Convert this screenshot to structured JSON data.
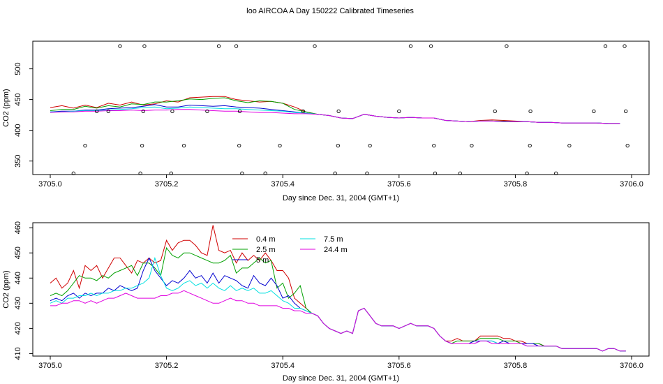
{
  "title": "loo AIRCOA A  Day 150222  Calibrated Timeseries",
  "chart_data": [
    {
      "type": "line",
      "title": "",
      "xlabel": "Day since Dec. 31, 2004 (GMT+1)",
      "ylabel": "CO2 (ppm)",
      "xlim": [
        3704.97,
        3706.03
      ],
      "ylim": [
        328,
        545
      ],
      "xticks": [
        "3705.0",
        "3705.2",
        "3705.4",
        "3705.6",
        "3705.8",
        "3706.0"
      ],
      "yticks": [
        "350",
        "400",
        "450",
        "500"
      ],
      "colors": [
        "#d00000",
        "#00a000",
        "#0000d0",
        "#00e0e0",
        "#e000e0"
      ],
      "x": [
        3705.0,
        3705.02,
        3705.04,
        3705.06,
        3705.08,
        3705.1,
        3705.12,
        3705.14,
        3705.16,
        3705.18,
        3705.2,
        3705.22,
        3705.24,
        3705.26,
        3705.28,
        3705.3,
        3705.32,
        3705.34,
        3705.36,
        3705.38,
        3705.4,
        3705.42,
        3705.44,
        3705.46,
        3705.48,
        3705.5,
        3705.52,
        3705.54,
        3705.56,
        3705.58,
        3705.6,
        3705.62,
        3705.64,
        3705.66,
        3705.68,
        3705.7,
        3705.72,
        3705.74,
        3705.76,
        3705.78,
        3705.8,
        3705.82,
        3705.84,
        3705.86,
        3705.88,
        3705.9,
        3705.92,
        3705.94,
        3705.96,
        3705.98
      ],
      "series": [
        {
          "values": [
            437,
            440,
            436,
            441,
            437,
            444,
            441,
            446,
            441,
            443,
            448,
            446,
            453,
            454,
            455,
            455,
            450,
            448,
            446,
            447,
            444,
            438,
            430,
            426,
            424,
            420,
            419,
            426,
            423,
            421,
            420,
            421,
            420,
            420,
            416,
            415,
            414,
            416,
            417,
            416,
            415,
            414,
            413,
            413,
            412,
            412,
            412,
            412,
            411,
            411
          ]
        },
        {
          "values": [
            432,
            434,
            434,
            439,
            436,
            440,
            438,
            443,
            442,
            446,
            446,
            448,
            451,
            450,
            452,
            453,
            448,
            445,
            448,
            447,
            444,
            434,
            430,
            426,
            424,
            420,
            419,
            426,
            423,
            421,
            420,
            421,
            420,
            420,
            416,
            415,
            414,
            415,
            415,
            415,
            414,
            414,
            413,
            413,
            412,
            412,
            412,
            412,
            411,
            411
          ]
        },
        {
          "values": [
            430,
            431,
            431,
            433,
            433,
            435,
            436,
            437,
            439,
            442,
            438,
            438,
            441,
            440,
            439,
            440,
            438,
            437,
            436,
            434,
            432,
            430,
            428,
            426,
            424,
            420,
            419,
            426,
            423,
            421,
            420,
            421,
            420,
            420,
            416,
            415,
            414,
            415,
            415,
            414,
            414,
            414,
            413,
            413,
            412,
            412,
            412,
            412,
            411,
            411
          ]
        },
        {
          "values": [
            430,
            430,
            431,
            432,
            432,
            433,
            434,
            435,
            437,
            438,
            435,
            436,
            438,
            437,
            436,
            435,
            435,
            434,
            433,
            432,
            431,
            429,
            428,
            426,
            424,
            420,
            419,
            426,
            423,
            421,
            420,
            421,
            420,
            420,
            416,
            415,
            414,
            415,
            415,
            414,
            414,
            414,
            413,
            413,
            412,
            412,
            412,
            412,
            411,
            411
          ]
        },
        {
          "values": [
            429,
            430,
            430,
            431,
            431,
            432,
            432,
            433,
            432,
            433,
            433,
            434,
            434,
            433,
            432,
            431,
            431,
            430,
            429,
            429,
            428,
            427,
            427,
            426,
            424,
            420,
            419,
            426,
            423,
            421,
            420,
            421,
            420,
            420,
            416,
            415,
            414,
            415,
            415,
            414,
            414,
            414,
            413,
            413,
            412,
            412,
            412,
            412,
            411,
            411
          ]
        }
      ],
      "calibration_x": [
        3705.04,
        3705.06,
        3705.08,
        3705.1,
        3705.12,
        3705.155,
        3705.158,
        3705.16,
        3705.162,
        3705.208,
        3705.21,
        3705.23,
        3705.27,
        3705.29,
        3705.32,
        3705.325,
        3705.326,
        3705.33,
        3705.37,
        3705.395,
        3705.435,
        3705.455,
        3705.49,
        3705.495,
        3705.496,
        3705.545,
        3705.55,
        3705.6,
        3705.62,
        3705.655,
        3705.66,
        3705.662,
        3705.705,
        3705.725,
        3705.765,
        3705.785,
        3705.82,
        3705.825,
        3705.826,
        3705.87,
        3705.893,
        3705.935,
        3705.955,
        3705.988,
        3705.99,
        3705.993
      ],
      "calibration_y": [
        330,
        375,
        431,
        431,
        537,
        330,
        375,
        431,
        537,
        330,
        431,
        375,
        431,
        537,
        537,
        375,
        431,
        330,
        330,
        375,
        431,
        537,
        330,
        375,
        431,
        330,
        375,
        431,
        537,
        537,
        375,
        330,
        330,
        375,
        431,
        537,
        330,
        375,
        431,
        330,
        375,
        431,
        537,
        537,
        431,
        375
      ]
    },
    {
      "type": "line",
      "title": "",
      "xlabel": "Day since Dec. 31, 2004 (GMT+1)",
      "ylabel": "CO2 (ppm)",
      "xlim": [
        3704.97,
        3706.03
      ],
      "ylim": [
        409,
        462
      ],
      "xticks": [
        "3705.0",
        "3705.2",
        "3705.4",
        "3705.6",
        "3705.8",
        "3706.0"
      ],
      "yticks": [
        "410",
        "420",
        "430",
        "440",
        "450",
        "460"
      ],
      "legend": [
        "0.4 m",
        "2.5 m",
        "5 m",
        "7.5 m",
        "24.4 m"
      ],
      "colors": [
        "#d00000",
        "#00a000",
        "#0000d0",
        "#00e0e0",
        "#e000e0"
      ],
      "x": [
        3705.0,
        3705.01,
        3705.02,
        3705.03,
        3705.04,
        3705.05,
        3705.06,
        3705.07,
        3705.08,
        3705.09,
        3705.1,
        3705.11,
        3705.12,
        3705.13,
        3705.14,
        3705.15,
        3705.16,
        3705.17,
        3705.18,
        3705.19,
        3705.2,
        3705.21,
        3705.22,
        3705.23,
        3705.24,
        3705.25,
        3705.26,
        3705.27,
        3705.28,
        3705.29,
        3705.3,
        3705.31,
        3705.32,
        3705.33,
        3705.34,
        3705.35,
        3705.36,
        3705.37,
        3705.38,
        3705.39,
        3705.4,
        3705.41,
        3705.42,
        3705.43,
        3705.44,
        3705.45,
        3705.46,
        3705.47,
        3705.48,
        3705.49,
        3705.5,
        3705.51,
        3705.52,
        3705.53,
        3705.54,
        3705.55,
        3705.56,
        3705.57,
        3705.58,
        3705.59,
        3705.6,
        3705.61,
        3705.62,
        3705.63,
        3705.64,
        3705.65,
        3705.66,
        3705.67,
        3705.68,
        3705.69,
        3705.7,
        3705.71,
        3705.72,
        3705.73,
        3705.74,
        3705.75,
        3705.76,
        3705.77,
        3705.78,
        3705.79,
        3705.8,
        3705.81,
        3705.82,
        3705.83,
        3705.84,
        3705.85,
        3705.86,
        3705.87,
        3705.88,
        3705.89,
        3705.9,
        3705.91,
        3705.92,
        3705.93,
        3705.94,
        3705.95,
        3705.96,
        3705.97,
        3705.98,
        3705.99
      ],
      "series": [
        {
          "name": "0.4 m",
          "values": [
            438,
            440,
            436,
            438,
            443,
            436,
            445,
            443,
            445,
            440,
            444,
            448,
            448,
            445,
            442,
            447,
            446,
            448,
            446,
            447,
            455,
            451,
            454,
            455,
            455,
            453,
            450,
            449,
            461,
            451,
            450,
            451,
            446,
            450,
            447,
            449,
            447,
            450,
            447,
            443,
            443,
            440,
            432,
            430,
            428,
            426,
            425,
            422,
            420,
            419,
            418,
            419,
            418,
            427,
            428,
            425,
            422,
            421,
            421,
            421,
            420,
            421,
            422,
            421,
            421,
            421,
            420,
            417,
            415,
            415,
            416,
            415,
            415,
            415,
            417,
            417,
            417,
            417,
            416,
            416,
            415,
            415,
            414,
            414,
            414,
            413,
            413,
            413,
            412,
            412,
            412,
            412,
            412,
            412,
            412,
            411,
            412,
            412,
            411,
            411
          ]
        },
        {
          "name": "2.5 m",
          "values": [
            433,
            434,
            433,
            435,
            438,
            441,
            440,
            440,
            439,
            441,
            440,
            442,
            443,
            444,
            445,
            441,
            446,
            446,
            444,
            441,
            452,
            449,
            448,
            450,
            450,
            449,
            448,
            447,
            446,
            446,
            447,
            449,
            442,
            444,
            444,
            446,
            448,
            446,
            447,
            436,
            438,
            432,
            434,
            437,
            428,
            426,
            425,
            422,
            420,
            419,
            418,
            419,
            418,
            427,
            428,
            425,
            422,
            421,
            421,
            421,
            420,
            421,
            422,
            421,
            421,
            421,
            420,
            417,
            415,
            414,
            415,
            415,
            415,
            415,
            416,
            416,
            416,
            416,
            415,
            415,
            415,
            414,
            414,
            414,
            414,
            413,
            413,
            413,
            412,
            412,
            412,
            412,
            412,
            412,
            412,
            411,
            412,
            412,
            411,
            411
          ]
        },
        {
          "name": "5 m",
          "values": [
            431,
            432,
            431,
            433,
            434,
            432,
            434,
            433,
            434,
            434,
            436,
            435,
            437,
            436,
            435,
            436,
            443,
            448,
            443,
            440,
            437,
            439,
            438,
            440,
            443,
            440,
            441,
            438,
            442,
            438,
            441,
            440,
            439,
            437,
            436,
            441,
            438,
            437,
            440,
            437,
            432,
            433,
            430,
            428,
            427,
            426,
            425,
            422,
            420,
            419,
            418,
            419,
            418,
            427,
            428,
            425,
            422,
            421,
            421,
            421,
            420,
            421,
            422,
            421,
            421,
            421,
            420,
            417,
            415,
            414,
            414,
            414,
            414,
            415,
            415,
            415,
            415,
            414,
            415,
            414,
            414,
            414,
            414,
            414,
            413,
            413,
            413,
            413,
            412,
            412,
            412,
            412,
            412,
            412,
            412,
            411,
            412,
            412,
            411,
            411
          ]
        },
        {
          "name": "7.5 m",
          "values": [
            430,
            431,
            430,
            432,
            432,
            433,
            433,
            434,
            433,
            434,
            434,
            435,
            435,
            436,
            436,
            437,
            438,
            440,
            448,
            441,
            436,
            435,
            436,
            438,
            439,
            437,
            438,
            436,
            438,
            436,
            435,
            437,
            435,
            436,
            435,
            436,
            434,
            434,
            435,
            433,
            431,
            430,
            428,
            428,
            427,
            426,
            425,
            422,
            420,
            419,
            418,
            419,
            418,
            427,
            428,
            425,
            422,
            421,
            421,
            421,
            420,
            421,
            422,
            421,
            421,
            421,
            420,
            417,
            415,
            414,
            414,
            414,
            414,
            414,
            415,
            415,
            415,
            414,
            414,
            414,
            414,
            414,
            413,
            413,
            413,
            413,
            413,
            413,
            412,
            412,
            412,
            412,
            412,
            412,
            412,
            411,
            412,
            412,
            411,
            411
          ]
        },
        {
          "name": "24.4 m",
          "values": [
            429,
            429,
            430,
            430,
            431,
            431,
            430,
            431,
            430,
            431,
            432,
            432,
            433,
            434,
            433,
            432,
            432,
            432,
            432,
            433,
            433,
            434,
            434,
            435,
            434,
            433,
            432,
            431,
            430,
            430,
            431,
            432,
            431,
            431,
            430,
            430,
            429,
            429,
            429,
            429,
            428,
            428,
            427,
            427,
            426,
            426,
            425,
            422,
            420,
            419,
            418,
            419,
            418,
            427,
            428,
            425,
            422,
            421,
            421,
            421,
            420,
            421,
            422,
            421,
            421,
            421,
            420,
            417,
            415,
            414,
            414,
            414,
            414,
            414,
            415,
            415,
            414,
            414,
            414,
            414,
            414,
            414,
            413,
            413,
            413,
            413,
            413,
            413,
            412,
            412,
            412,
            412,
            412,
            412,
            412,
            411,
            412,
            412,
            411,
            411
          ]
        }
      ]
    }
  ]
}
